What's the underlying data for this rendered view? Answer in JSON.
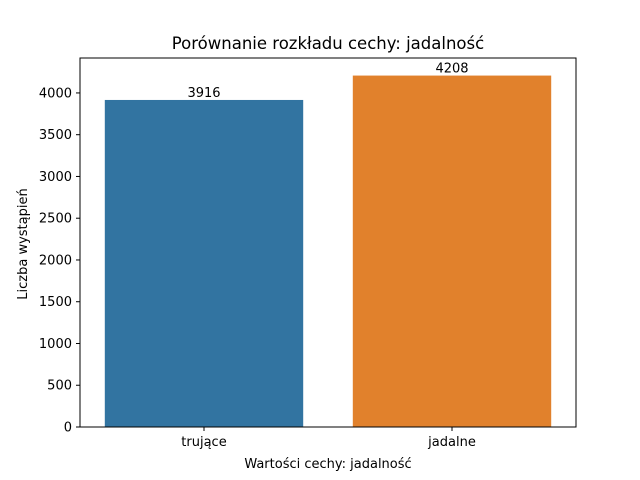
{
  "chart_data": {
    "type": "bar",
    "title": "Porównanie rozkładu cechy: jadalność",
    "xlabel": "Wartości cechy: jadalność",
    "ylabel": "Liczba wystąpień",
    "categories": [
      "trujące",
      "jadalne"
    ],
    "values": [
      3916,
      4208
    ],
    "colors": [
      "#3274a1",
      "#e1812c"
    ],
    "ylim": [
      0,
      4418.4
    ],
    "yticks": [
      0,
      500,
      1000,
      1500,
      2000,
      2500,
      3000,
      3500,
      4000
    ],
    "grid": false,
    "legend": "none"
  }
}
